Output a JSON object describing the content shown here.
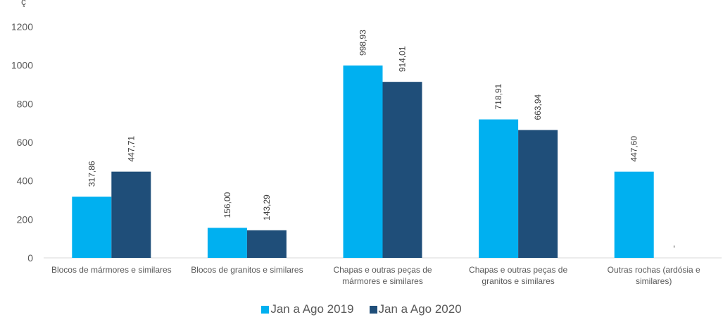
{
  "colors": {
    "series_2019": "#00B0F0",
    "series_2020": "#1F4E79",
    "axis": "#D9D9D9",
    "text": "#595959"
  },
  "chart_data": {
    "type": "bar",
    "categories": [
      [
        "Blocos de mármores e similares"
      ],
      [
        "Blocos de granitos e similares"
      ],
      [
        "Chapas e outras peças de",
        "mármores e similares"
      ],
      [
        "Chapas e outras peças de",
        "granitos e similares"
      ],
      [
        "Outras rochas (ardósia e",
        "similares)"
      ]
    ],
    "series": [
      {
        "name": "Jan a Ago 2019",
        "values": [
          317.86,
          156.0,
          998.93,
          718.91,
          447.6
        ],
        "labels": [
          "317,86",
          "156,00",
          "998,93",
          "718,91",
          "447,60"
        ]
      },
      {
        "name": "Jan a Ago 2020",
        "values": [
          447.71,
          143.29,
          914.01,
          663.94,
          0
        ],
        "labels": [
          "447,71",
          "143,29",
          "914,01",
          "663,94",
          "-"
        ]
      }
    ],
    "ylim": [
      0,
      1200
    ],
    "yticks": [
      "0",
      "200",
      "400",
      "600",
      "800",
      "1000",
      "1200"
    ],
    "grid": false,
    "legend_position": "bottom",
    "title_fragment": "ç"
  }
}
